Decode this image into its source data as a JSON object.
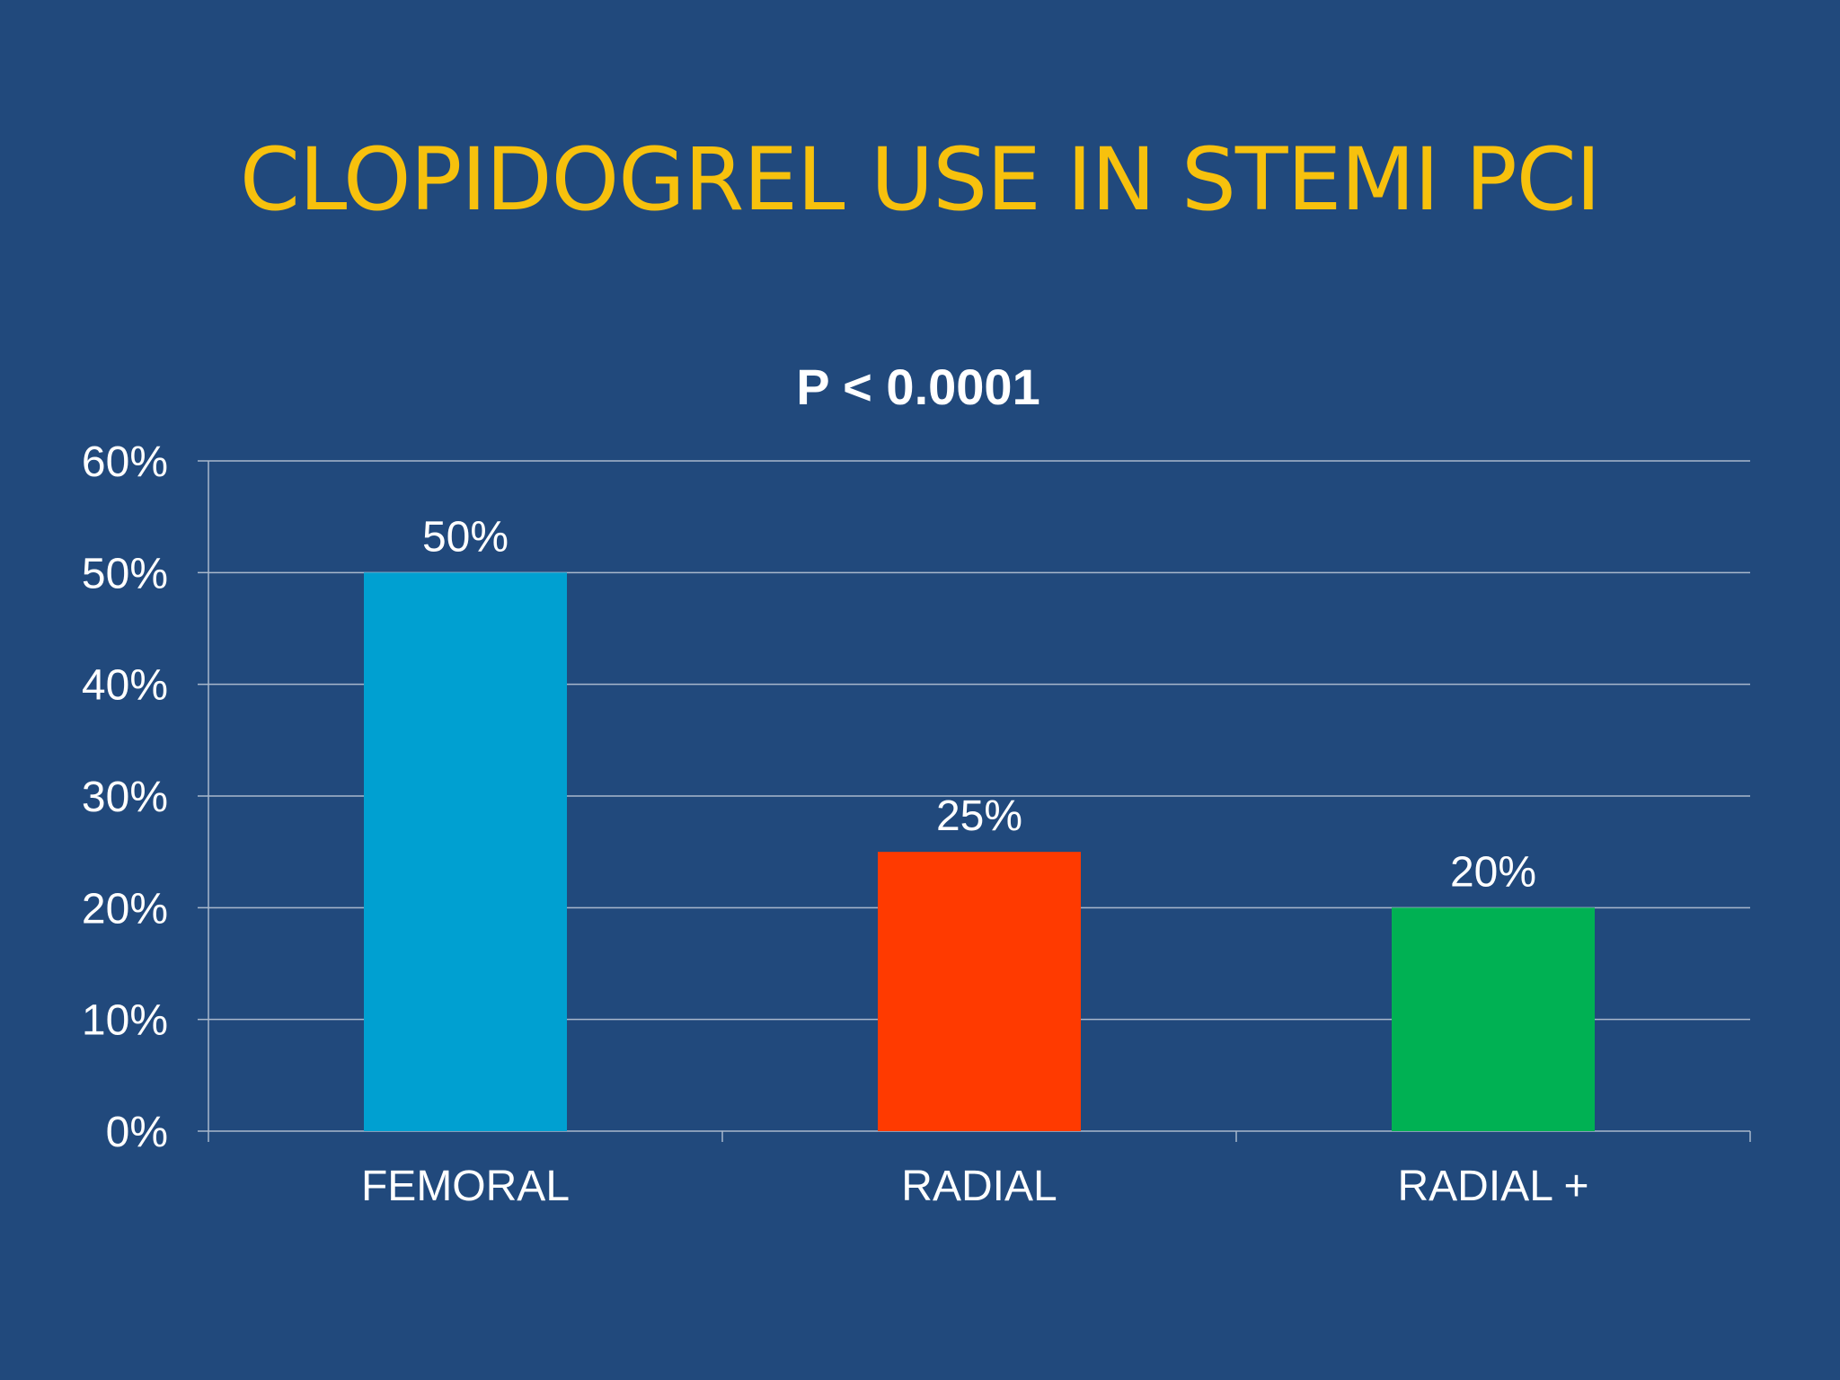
{
  "slide": {
    "title": "CLOPIDOGREL USE IN STEMI PCI"
  },
  "chart_data": {
    "type": "bar",
    "title": "P < 0.0001",
    "categories": [
      "FEMORAL",
      "RADIAL",
      "RADIAL +"
    ],
    "values": [
      50,
      25,
      20
    ],
    "data_labels": [
      "50%",
      "25%",
      "20%"
    ],
    "colors": [
      "#00a0d1",
      "#ff3a00",
      "#00b153"
    ],
    "ylim": [
      0,
      60
    ],
    "yticks": [
      0,
      10,
      20,
      30,
      40,
      50,
      60
    ],
    "ytick_labels": [
      "0%",
      "10%",
      "20%",
      "30%",
      "40%",
      "50%",
      "60%"
    ],
    "xlabel": "",
    "ylabel": "",
    "grid": true,
    "legend": "none"
  }
}
